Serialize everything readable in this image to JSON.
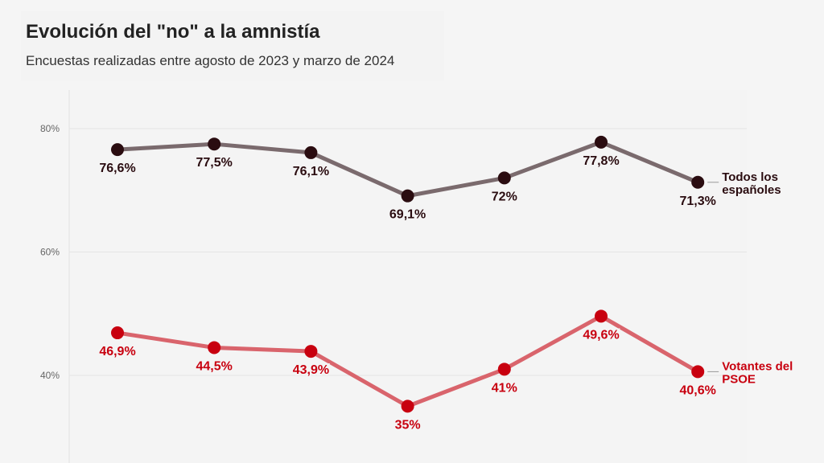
{
  "header": {
    "title": "Evolución del \"no\" a la amnistía",
    "subtitle": "Encuestas realizadas entre agosto de 2023 y marzo de 2024"
  },
  "chart_data": {
    "type": "line",
    "title": "Evolución del \"no\" a la amnistía",
    "subtitle": "Encuestas realizadas entre agosto de 2023 y marzo de 2024",
    "y_ticks": [
      "80%",
      "60%",
      "40%"
    ],
    "y_tick_values": [
      80,
      60,
      40
    ],
    "ylim": [
      26,
      86
    ],
    "grid": true,
    "series": [
      {
        "name": "Todos los españoles",
        "label_lines": [
          "Todos los",
          "españoles"
        ],
        "values": [
          76.6,
          77.5,
          76.1,
          69.1,
          72,
          77.8,
          71.3
        ],
        "labels": [
          "76,6%",
          "77,5%",
          "76,1%",
          "69,1%",
          "72%",
          "77,8%",
          "71,3%"
        ],
        "line_color": "#7a6a6d",
        "point_color": "#2a0c10",
        "text_color": "#2a0c10"
      },
      {
        "name": "Votantes del PSOE",
        "label_lines": [
          "Votantes del",
          "PSOE"
        ],
        "values": [
          46.9,
          44.5,
          43.9,
          35,
          41,
          49.6,
          40.6
        ],
        "labels": [
          "46,9%",
          "44,5%",
          "43,9%",
          "35%",
          "41%",
          "49,6%",
          "40,6%"
        ],
        "line_color": "#d9646c",
        "point_color": "#c8000f",
        "text_color": "#c8000f"
      }
    ]
  }
}
